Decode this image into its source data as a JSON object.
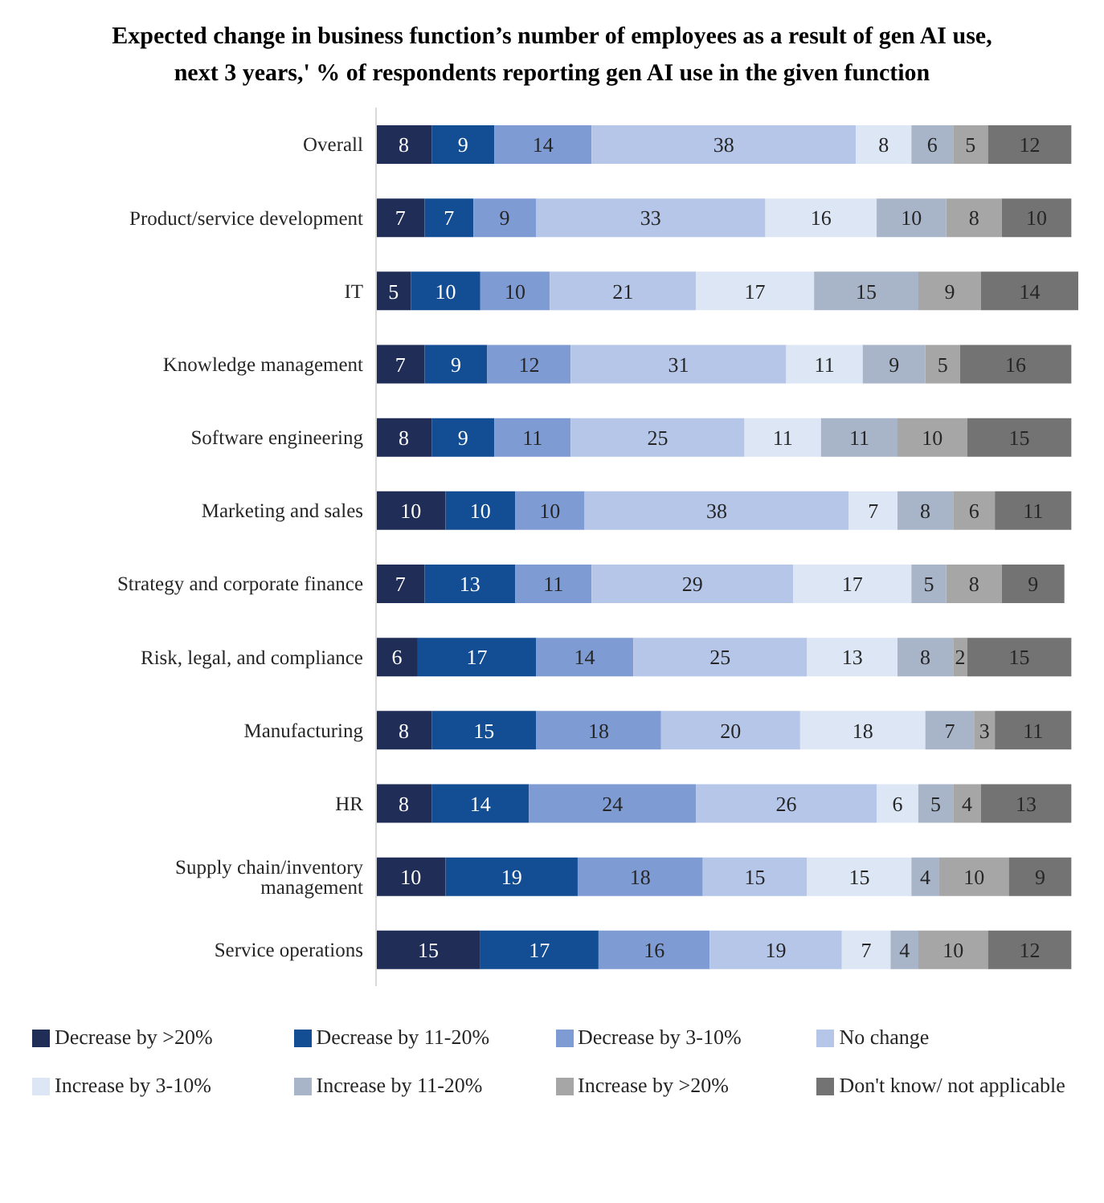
{
  "chart_data": {
    "type": "bar",
    "orientation": "horizontal",
    "stacked": true,
    "data_labels": true,
    "legend": "bottom",
    "tick_labels": "y",
    "title": "Expected change in business function’s number of employees as a result of gen AI use, next 3 years,' % of respondents reporting gen AI use in the given function",
    "categories": [
      "Overall",
      "Product/service development",
      "IT",
      "Knowledge management",
      "Software engineering",
      "Marketing and sales",
      "Strategy and corporate finance",
      "Risk, legal, and compliance",
      "Manufacturing",
      "HR",
      "Supply chain/inventory management",
      "Service operations"
    ],
    "series": [
      {
        "name": "Decrease by >20%",
        "color": "#1f2d57",
        "values": [
          8,
          7,
          5,
          7,
          8,
          10,
          7,
          6,
          8,
          8,
          10,
          15
        ]
      },
      {
        "name": "Decrease by 11-20%",
        "color": "#134d94",
        "values": [
          9,
          7,
          10,
          9,
          9,
          10,
          13,
          17,
          15,
          14,
          19,
          17
        ]
      },
      {
        "name": "Decrease by 3-10%",
        "color": "#7e9bd4",
        "values": [
          14,
          9,
          10,
          12,
          11,
          10,
          11,
          14,
          18,
          24,
          18,
          16
        ]
      },
      {
        "name": "No change",
        "color": "#b5c6e8",
        "values": [
          38,
          33,
          21,
          31,
          25,
          38,
          29,
          25,
          20,
          26,
          15,
          19
        ]
      },
      {
        "name": "Increase by 3-10%",
        "color": "#dde6f4",
        "values": [
          8,
          16,
          17,
          11,
          11,
          7,
          17,
          13,
          18,
          6,
          15,
          7
        ]
      },
      {
        "name": "Increase by 11-20%",
        "color": "#a8b4c8",
        "values": [
          6,
          10,
          15,
          9,
          11,
          8,
          5,
          8,
          7,
          5,
          4,
          4
        ]
      },
      {
        "name": "Increase by >20%",
        "color": "#a6a6a6",
        "values": [
          5,
          8,
          9,
          5,
          10,
          6,
          8,
          2,
          3,
          4,
          10,
          10
        ]
      },
      {
        "name": "Don't know/ not applicable",
        "color": "#737373",
        "values": [
          12,
          10,
          14,
          16,
          15,
          11,
          9,
          15,
          11,
          13,
          9,
          12
        ]
      }
    ]
  }
}
